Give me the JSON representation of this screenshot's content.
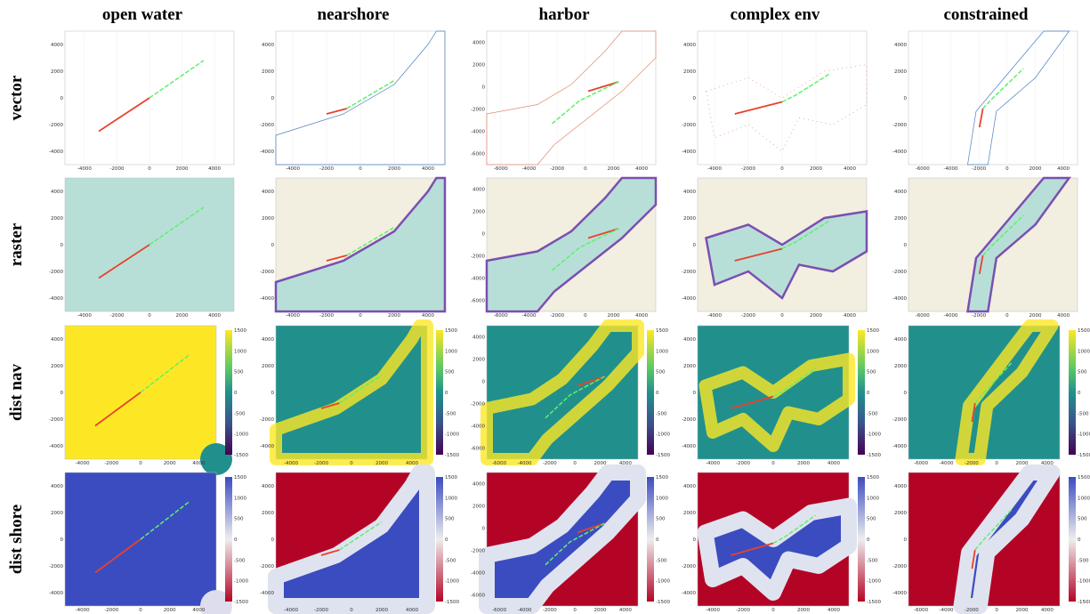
{
  "columns": [
    {
      "title": "open water",
      "xticks": [
        -4000,
        -2000,
        0,
        2000,
        4000
      ],
      "yticks": [
        4000,
        2000,
        0,
        -2000,
        -4000
      ],
      "xlim": [
        -5200,
        5200
      ],
      "ylim": [
        -5000,
        5000
      ]
    },
    {
      "title": "nearshore",
      "xticks": [
        -4000,
        -2000,
        0,
        2000,
        4000
      ],
      "yticks": [
        4000,
        2000,
        0,
        -2000,
        -4000
      ],
      "xlim": [
        -5000,
        5000
      ],
      "ylim": [
        -5000,
        5000
      ]
    },
    {
      "title": "harbor",
      "xticks": [
        -6000,
        -4000,
        -2000,
        0,
        2000,
        4000
      ],
      "yticks": [
        4000,
        2000,
        0,
        -2000,
        -4000,
        -6000
      ],
      "xlim": [
        -7000,
        5000
      ],
      "ylim": [
        -7000,
        5000
      ]
    },
    {
      "title": "complex env",
      "xticks": [
        -4000,
        -2000,
        0,
        2000,
        4000
      ],
      "yticks": [
        4000,
        2000,
        0,
        -2000,
        -4000
      ],
      "xlim": [
        -5000,
        5000
      ],
      "ylim": [
        -5000,
        5000
      ]
    },
    {
      "title": "constrained",
      "xticks": [
        -6000,
        -4000,
        -2000,
        0,
        2000,
        4000
      ],
      "yticks": [
        4000,
        2000,
        0,
        -2000,
        -4000
      ],
      "xlim": [
        -7000,
        5000
      ],
      "ylim": [
        -5000,
        5000
      ]
    }
  ],
  "rows": [
    "vector",
    "raster",
    "dist nav",
    "dist shore"
  ],
  "colorbar_ticks": [
    1500,
    1000,
    500,
    0,
    -500,
    -1000,
    -1500
  ]
}
